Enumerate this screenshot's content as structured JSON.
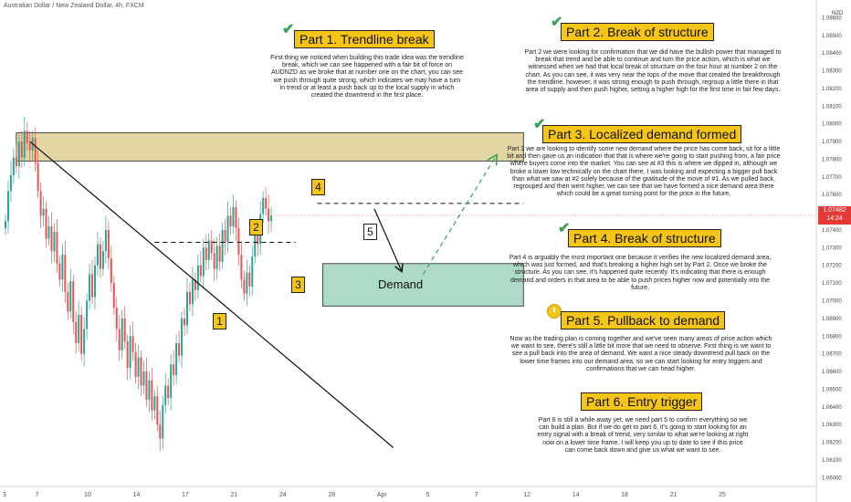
{
  "header": {
    "instrument": "Australian Dollar / New Zealand Dollar, 4h, FXCM"
  },
  "chart_data": {
    "type": "candlestick",
    "pair": "AUD/NZD",
    "timeframe": "4h",
    "currency": "NZD",
    "ylim": [
      1.0595,
      1.087
    ],
    "y_ticks": [
      "1.08600",
      "1.08500",
      "1.08400",
      "1.08300",
      "1.08200",
      "1.08100",
      "1.08000",
      "1.07900",
      "1.07800",
      "1.07700",
      "1.07600",
      "1.07500",
      "1.07400",
      "1.07300",
      "1.07200",
      "1.07100",
      "1.07000",
      "1.06900",
      "1.06800",
      "1.06700",
      "1.06600",
      "1.06500",
      "1.06400",
      "1.06300",
      "1.06200",
      "1.06100",
      "1.06000"
    ],
    "x_ticks": [
      {
        "label": "3",
        "i": 0
      },
      {
        "label": "7",
        "i": 12
      },
      {
        "label": "10",
        "i": 30
      },
      {
        "label": "14",
        "i": 48
      },
      {
        "label": "17",
        "i": 66
      },
      {
        "label": "21",
        "i": 84
      },
      {
        "label": "24",
        "i": 102
      },
      {
        "label": "28",
        "i": 120
      },
      {
        "label": "Apr",
        "i": 138
      },
      {
        "label": "5",
        "i": 156
      },
      {
        "label": "7",
        "i": 174
      },
      {
        "label": "12",
        "i": 192
      },
      {
        "label": "14",
        "i": 210
      },
      {
        "label": "18",
        "i": 228
      },
      {
        "label": "21",
        "i": 246
      },
      {
        "label": "25",
        "i": 264
      }
    ],
    "last_price": "1.07482",
    "countdown": "14:24",
    "closes": [
      1.0745,
      1.0762,
      1.0771,
      1.0781,
      1.0776,
      1.079,
      1.0781,
      1.0796,
      1.0789,
      1.0785,
      1.0792,
      1.0778,
      1.0762,
      1.0748,
      1.0752,
      1.0735,
      1.0742,
      1.0728,
      1.0739,
      1.0721,
      1.0712,
      1.0726,
      1.0705,
      1.0694,
      1.0711,
      1.0688,
      1.0676,
      1.0692,
      1.067,
      1.0684,
      1.07,
      1.0715,
      1.0702,
      1.072,
      1.0732,
      1.0718,
      1.0728,
      1.074,
      1.0724,
      1.071,
      1.0696,
      1.0684,
      1.0672,
      1.069,
      1.0677,
      1.0662,
      1.068,
      1.0671,
      1.0657,
      1.0668,
      1.0652,
      1.066,
      1.0644,
      1.0655,
      1.0638,
      1.0646,
      1.063,
      1.0622,
      1.0641,
      1.0652,
      1.0645,
      1.0664,
      1.0658,
      1.0676,
      1.0669,
      1.069,
      1.0686,
      1.0705,
      1.0698,
      1.0712,
      1.0706,
      1.072,
      1.0714,
      1.073,
      1.0723,
      1.0734,
      1.0727,
      1.0718,
      1.0731,
      1.0722,
      1.074,
      1.0733,
      1.0748,
      1.0742,
      1.0753,
      1.0741,
      1.0726,
      1.0712,
      1.0704,
      1.0716,
      1.0708,
      1.0725,
      1.0738,
      1.0732,
      1.0749,
      1.0758,
      1.0752,
      1.0745,
      1.0748
    ],
    "trendline": {
      "from": {
        "i": 9,
        "y": 1.079
      },
      "to": {
        "i": 143,
        "y": 1.0617
      }
    },
    "supply_zone": {
      "y_top": 1.0795,
      "y_bottom": 1.0779,
      "i_start": 4,
      "i_end": 191
    },
    "demand_zone": {
      "y_top": 1.0721,
      "y_bottom": 1.0697,
      "i_start": 117,
      "i_end": 191
    },
    "level_2": {
      "y": 1.0733,
      "i_start": 55,
      "i_end": 107
    },
    "level_4": {
      "y": 1.0755,
      "i_start": 115,
      "i_end": 191
    },
    "arrow_down": {
      "from": {
        "i": 136,
        "y": 1.0752
      },
      "to": {
        "i": 146,
        "y": 1.0717
      }
    },
    "arrow_up": {
      "from": {
        "i": 154,
        "y": 1.0715
      },
      "to": {
        "i": 181,
        "y": 1.0782
      }
    }
  },
  "labels": {
    "n1": "1",
    "n2": "2",
    "n3": "3",
    "n4": "4",
    "n5": "5",
    "demand": "Demand"
  },
  "parts": [
    {
      "title": "Part 1. Trendline break",
      "text": "First thing we noticed when building this trade idea was the trendline break, which we can see happened with a fair bit of force on AUDNZD as we broke that at number one on the chart, you can see we push through quite strong, which indicates we may have a turn in trend or at least a push back up to the local supply in which created the downtrend in the first place."
    },
    {
      "title": "Part 2. Break of structure",
      "text": "Part 2 we were looking for confirmation that we did have the bullish power that managed to break that trend and be able to continue and turn the price action, which is what we witnessed when we had that local break of structure on the four hour at number 2 on the chart. As you can see, it was very near the tops of the move that created the breakthrough the trendline, however, it was strong enough to push through, regroup a little there in that area of supply and then push higher, setting a higher high for the first time in fair few days."
    },
    {
      "title": "Part 3. Localized demand formed",
      "text": "Part 3 we are looking to identify some new demand where the price has come back, sit for a little bit and then gave us an indication that that is where we're going to start pushing from, a fair price where buyers come into the market. You can see at #3 this is where we dipped in, although we broke a lower low technically on the chart there, I was looking and expecting a bigger pull back than what we saw at #2 solely because of the gratitude of the move of #1. As we pulled back, regrouped and then went higher, we can see that we have formed a nice demand area there which could be a great turning point for the price in the future."
    },
    {
      "title": "Part 4. Break of structure",
      "text": "Part 4 is arguably the most important one because it verifies the new localized demand area, which was just formed, and that's breaking a higher high set by Part 2. Once we broke the structure. As you can see, it's happened quite recently. It's indicating that there is enough demand and orders in that area to be able to push prices higher now and potentially into the future."
    },
    {
      "title": "Part 5. Pullback to demand",
      "text": "Now as the trading plan is coming together and we've seen many areas of price action which we want to see, there's still a little bit more that we need to observe. First thing is we want to see a pull back into the area of demand. We want a nice steady downtrend pull back on the lower time frames into our demand area, so we can start looking for entry triggers and confirmations that we can head higher."
    },
    {
      "title": "Part 6. Entry trigger",
      "text": "Part 6 is still a while away yet, we need part 5 to confirm everything so we can build a plan. But if we do get to part 6, it's going to start looking for an entry signal with a break of trend, very similar to what we're looking at right now on a lower time frame. I will keep you up to date to see if this price can come back down and give us what we want to see."
    }
  ],
  "colors": {
    "bull": "#26a69a",
    "bear": "#ef5350",
    "supply": "#c8b45a",
    "demand": "#4caf80",
    "accent": "#f5c518",
    "check": "#3aa356"
  },
  "icons": [
    "check-icon",
    "clock-icon"
  ]
}
